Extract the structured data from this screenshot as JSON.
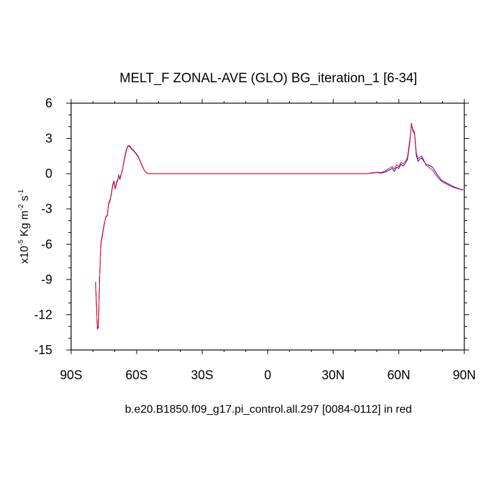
{
  "chart_data": {
    "type": "line",
    "title": "MELT_F ZONAL-AVE (GLO) BG_iteration_1 [6-34]",
    "xlabel": "b.e20.B1850.f09_g17.pi_control.all.297 [0084-0112] in red",
    "ylabel": {
      "prefix": "x10",
      "exp1": "-5",
      "unit": " Kg m",
      "exp2": "-2",
      "unit2": " s",
      "exp3": "-1"
    },
    "xlim": [
      -90,
      90
    ],
    "ylim": [
      -15,
      6
    ],
    "xticks": [
      {
        "value": -90,
        "label": "90S"
      },
      {
        "value": -60,
        "label": "60S"
      },
      {
        "value": -30,
        "label": "30S"
      },
      {
        "value": 0,
        "label": "0"
      },
      {
        "value": 30,
        "label": "30N"
      },
      {
        "value": 60,
        "label": "60N"
      },
      {
        "value": 90,
        "label": "90N"
      }
    ],
    "yticks": [
      {
        "value": 6,
        "label": "6"
      },
      {
        "value": 3,
        "label": "3"
      },
      {
        "value": 0,
        "label": "0"
      },
      {
        "value": -3,
        "label": "-3"
      },
      {
        "value": -6,
        "label": "-6"
      },
      {
        "value": -9,
        "label": "-9"
      },
      {
        "value": -12,
        "label": "-12"
      },
      {
        "value": -15,
        "label": "-15"
      }
    ],
    "series": [
      {
        "name": "BG_iteration_1",
        "color": "#0000ff",
        "x": [
          -78.8,
          -78.0,
          -77.5,
          -77.0,
          -76.3,
          -75.5,
          -74.8,
          -74.0,
          -73.4,
          -72.8,
          -72.2,
          -71.6,
          -71.0,
          -70.4,
          -69.8,
          -69.2,
          -68.7,
          -68.2,
          -67.7,
          -67.2,
          -66.6,
          -66.0,
          -65.4,
          -64.8,
          -64.2,
          -63.6,
          -63.0,
          -62.4,
          -61.5,
          -60.5,
          -59.5,
          -58.5,
          -57.5,
          -56.5,
          -55.5,
          -54.5,
          -53.5,
          -52.5,
          -51.5,
          -50.5,
          -45,
          -30,
          -10,
          10,
          30,
          45,
          48,
          50,
          52,
          54,
          56,
          57,
          58,
          59,
          60,
          61,
          62,
          63,
          64,
          65,
          65.8,
          66.5,
          67.2,
          68.0,
          68.8,
          69.5,
          70.5,
          71.5,
          72.5,
          73.5,
          74.5,
          75.5,
          76.5,
          77.5,
          78.5,
          79.5,
          80.5,
          81.5,
          82.5,
          83.5,
          84.5,
          85.5,
          86.5,
          87.5,
          88.5,
          89.5
        ],
        "y": [
          -9.2,
          -13.2,
          -13.1,
          -9.0,
          -5.8,
          -5.0,
          -4.2,
          -3.7,
          -3.5,
          -2.6,
          -2.3,
          -1.7,
          -1.0,
          -0.6,
          -1.3,
          -0.8,
          -0.6,
          -0.1,
          -0.5,
          -0.2,
          0.3,
          0.8,
          1.4,
          1.9,
          2.25,
          2.35,
          2.3,
          2.1,
          1.95,
          1.75,
          1.5,
          1.1,
          0.65,
          0.28,
          0.06,
          0.0,
          0.0,
          0.0,
          0.0,
          0.0,
          0.0,
          0.0,
          0.0,
          0.0,
          0.0,
          0.0,
          0.05,
          0.1,
          0.05,
          0.15,
          0.35,
          0.45,
          0.2,
          0.55,
          0.45,
          0.8,
          0.65,
          0.9,
          1.2,
          2.6,
          4.3,
          3.6,
          3.4,
          1.6,
          1.05,
          1.2,
          1.35,
          1.05,
          0.8,
          0.75,
          0.65,
          0.55,
          0.25,
          -0.05,
          -0.3,
          -0.55,
          -0.65,
          -0.75,
          -0.85,
          -0.95,
          -1.05,
          -1.15,
          -1.2,
          -1.28,
          -1.32,
          -1.35
        ]
      },
      {
        "name": "pi_control",
        "color": "#ff0000",
        "x": [
          -78.8,
          -78.0,
          -77.5,
          -77.0,
          -76.3,
          -75.5,
          -74.8,
          -74.0,
          -73.4,
          -72.8,
          -72.2,
          -71.6,
          -71.0,
          -70.4,
          -69.8,
          -69.2,
          -68.7,
          -68.2,
          -67.7,
          -67.2,
          -66.6,
          -66.0,
          -65.4,
          -64.8,
          -64.2,
          -63.6,
          -63.0,
          -62.4,
          -61.5,
          -60.5,
          -59.5,
          -58.5,
          -57.5,
          -56.5,
          -55.5,
          -54.5,
          -53.5,
          -52.5,
          -51.5,
          -50.5,
          -45,
          -30,
          -10,
          10,
          30,
          45,
          48,
          50,
          52,
          54,
          56,
          57,
          58,
          59,
          60,
          61,
          62,
          63,
          64,
          65,
          65.8,
          66.5,
          67.2,
          68.0,
          68.8,
          69.5,
          70.5,
          71.5,
          72.5,
          73.5,
          74.5,
          75.5,
          76.5,
          77.5,
          78.5,
          79.5,
          80.5,
          81.5,
          82.5,
          83.5,
          84.5,
          85.5,
          86.5,
          87.5,
          88.5,
          89.5
        ],
        "y": [
          -9.3,
          -13.1,
          -13.0,
          -9.1,
          -5.9,
          -5.1,
          -4.3,
          -3.6,
          -3.6,
          -2.5,
          -2.2,
          -1.8,
          -1.1,
          -0.7,
          -1.2,
          -0.7,
          -0.5,
          -0.2,
          -0.4,
          -0.1,
          0.2,
          0.9,
          1.5,
          2.0,
          2.3,
          2.4,
          2.35,
          2.15,
          2.0,
          1.8,
          1.55,
          1.15,
          0.7,
          0.3,
          0.07,
          0.0,
          0.0,
          0.0,
          0.0,
          0.0,
          0.0,
          0.0,
          0.0,
          0.0,
          0.0,
          0.0,
          0.08,
          0.12,
          0.1,
          0.25,
          0.5,
          0.6,
          0.4,
          0.75,
          0.6,
          0.95,
          0.85,
          1.05,
          1.4,
          2.8,
          4.2,
          3.75,
          3.55,
          1.8,
          1.25,
          1.4,
          1.5,
          1.15,
          0.7,
          0.6,
          0.45,
          0.3,
          0.0,
          -0.25,
          -0.45,
          -0.65,
          -0.75,
          -0.85,
          -0.95,
          -1.05,
          -1.12,
          -1.2,
          -1.25,
          -1.3,
          -1.35,
          -1.38
        ]
      }
    ]
  }
}
